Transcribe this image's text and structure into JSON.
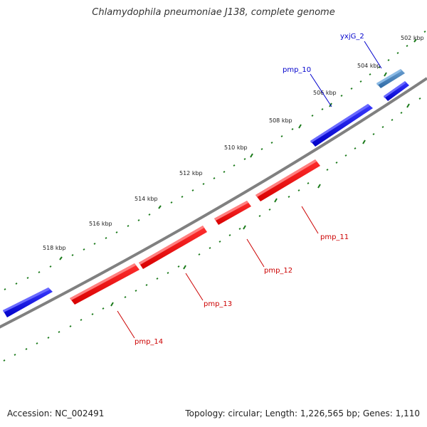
{
  "title": "Chlamydophila pneumoniae J138, complete genome",
  "accession": "Accession: NC_002491",
  "summary": "Topology: circular; Length: 1,226,565 bp; Genes: 1,110",
  "ticks": [
    "502 kbp",
    "504 kbp",
    "506 kbp",
    "508 kbp",
    "510 kbp",
    "512 kbp",
    "514 kbp",
    "516 kbp",
    "518 kbp"
  ],
  "genes": {
    "yxjG_2": "yxjG_2",
    "pmp_10": "pmp_10",
    "pmp_11": "pmp_11",
    "pmp_12": "pmp_12",
    "pmp_13": "pmp_13",
    "pmp_14": "pmp_14"
  },
  "colors": {
    "forward_gene": "#0000e6",
    "reverse_gene": "#ff0000",
    "highlight_gene": "#3f7fbf",
    "tick": "#1a7a1a",
    "backbone": "#808080"
  }
}
